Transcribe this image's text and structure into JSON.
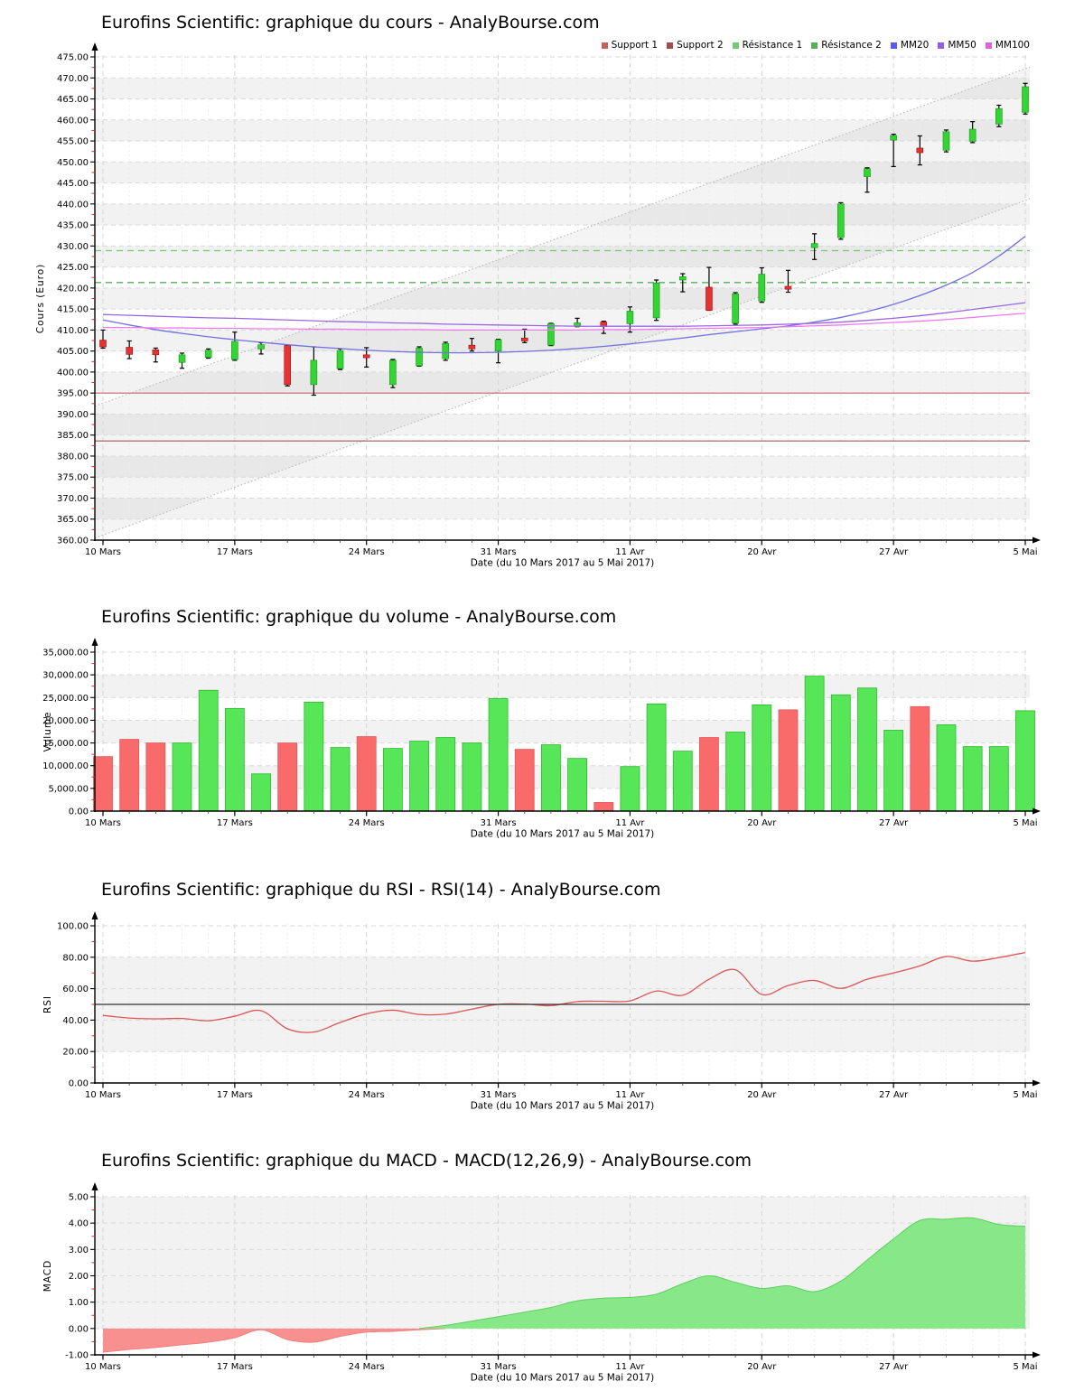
{
  "page_background": "#ffffff",
  "chart_data": [
    {
      "id": "cours",
      "type": "candlestick",
      "title": "Eurofins Scientific: graphique du cours - AnalyBourse.com",
      "ylabel": "Cours (Euro)",
      "xlabel": "Date (du 10 Mars 2017 au 5 Mai 2017)",
      "ylim": [
        360,
        475
      ],
      "ytick_step": 5,
      "ytick_labels": [
        "360.00",
        "365.00",
        "370.00",
        "375.00",
        "380.00",
        "385.00",
        "390.00",
        "395.00",
        "400.00",
        "405.00",
        "410.00",
        "415.00",
        "420.00",
        "425.00",
        "430.00",
        "435.00",
        "440.00",
        "445.00",
        "450.00",
        "455.00",
        "460.00",
        "465.00",
        "470.00",
        "475.00"
      ],
      "xtick_labels": [
        "10 Mars",
        "17 Mars",
        "24 Mars",
        "31 Mars",
        "11 Avr",
        "20 Avr",
        "27 Avr",
        "5 Mai"
      ],
      "xtick_indices": [
        0,
        5,
        10,
        15,
        20,
        25,
        30,
        35
      ],
      "n_points": 36,
      "ohlc": [
        [
          407.6,
          410.0,
          405.7,
          406.0
        ],
        [
          405.9,
          407.4,
          403.2,
          404.2
        ],
        [
          405.3,
          405.7,
          402.4,
          404.1
        ],
        [
          402.3,
          404.5,
          400.9,
          404.1
        ],
        [
          403.5,
          405.5,
          403.3,
          405.2
        ],
        [
          403.0,
          409.5,
          402.8,
          407.3
        ],
        [
          405.5,
          407.0,
          404.3,
          406.5
        ],
        [
          406.3,
          406.4,
          396.7,
          397.0
        ],
        [
          397.0,
          406.0,
          394.5,
          402.8
        ],
        [
          400.8,
          405.5,
          400.6,
          405.1
        ],
        [
          404.1,
          405.8,
          401.2,
          403.4
        ],
        [
          397.0,
          403.0,
          396.3,
          402.8
        ],
        [
          401.5,
          406.0,
          401.4,
          405.7
        ],
        [
          403.2,
          407.1,
          402.8,
          406.8
        ],
        [
          406.4,
          408.0,
          405.0,
          405.5
        ],
        [
          405.0,
          407.8,
          402.2,
          407.7
        ],
        [
          408.1,
          410.2,
          407.0,
          407.4
        ],
        [
          406.4,
          411.6,
          406.3,
          411.5
        ],
        [
          410.9,
          412.8,
          410.8,
          411.7
        ],
        [
          411.9,
          412.1,
          409.2,
          410.8
        ],
        [
          411.5,
          415.5,
          409.5,
          414.5
        ],
        [
          412.9,
          421.9,
          412.3,
          421.2
        ],
        [
          421.9,
          423.4,
          419.1,
          422.7
        ],
        [
          420.2,
          424.9,
          414.7,
          414.7
        ],
        [
          411.6,
          418.9,
          411.4,
          418.6
        ],
        [
          416.9,
          424.8,
          416.6,
          423.3
        ],
        [
          420.4,
          424.2,
          419.0,
          419.8
        ],
        [
          429.6,
          432.9,
          426.8,
          430.6
        ],
        [
          432.0,
          440.3,
          431.6,
          440.0
        ],
        [
          446.5,
          448.6,
          442.8,
          448.4
        ],
        [
          455.2,
          456.6,
          448.9,
          456.3
        ],
        [
          453.3,
          456.2,
          449.3,
          452.2
        ],
        [
          452.8,
          457.6,
          452.4,
          457.2
        ],
        [
          454.9,
          459.6,
          454.6,
          457.8
        ],
        [
          459.0,
          463.5,
          458.4,
          462.7
        ],
        [
          461.8,
          468.7,
          461.4,
          467.9
        ]
      ],
      "up_color": "#33d433",
      "down_color": "#e63232",
      "legend": [
        {
          "label": "Support 1",
          "color": "#c75f5f"
        },
        {
          "label": "Support 2",
          "color": "#9e5050"
        },
        {
          "label": "Résistance 1",
          "color": "#74c974"
        },
        {
          "label": "Résistance 2",
          "color": "#58ad58"
        },
        {
          "label": "MM20",
          "color": "#5c5ce0"
        },
        {
          "label": "MM50",
          "color": "#9060e0"
        },
        {
          "label": "MM100",
          "color": "#e060e0"
        }
      ],
      "support_lines": [
        {
          "name": "Support 1",
          "value": 395.0,
          "color": "#c96a6a"
        },
        {
          "name": "Support 2",
          "value": 383.6,
          "color": "#a15c52"
        }
      ],
      "resistance_lines": [
        {
          "name": "Résistance 1",
          "value": 428.9,
          "color": "#74c974"
        },
        {
          "name": "Résistance 2",
          "value": 421.3,
          "color": "#58ad58"
        }
      ],
      "moving_averages": [
        {
          "name": "MM20",
          "color": "#7070e0",
          "values": [
            412.4,
            411.2,
            410.1,
            409.2,
            408.4,
            407.7,
            407.1,
            406.5,
            406.0,
            405.6,
            405.2,
            404.9,
            404.7,
            404.6,
            404.6,
            404.7,
            404.9,
            405.2,
            405.6,
            406.1,
            406.7,
            407.4,
            408.1,
            408.9,
            409.6,
            410.3,
            411.0,
            411.9,
            413.0,
            414.4,
            416.1,
            418.2,
            420.7,
            423.7,
            427.6,
            432.3
          ]
        },
        {
          "name": "MM50",
          "color": "#9a68e4",
          "values": [
            413.7,
            413.5,
            413.3,
            413.1,
            412.9,
            412.8,
            412.6,
            412.4,
            412.2,
            412.0,
            411.9,
            411.7,
            411.6,
            411.4,
            411.3,
            411.2,
            411.1,
            411.0,
            410.9,
            410.9,
            410.9,
            410.9,
            410.9,
            411.0,
            411.1,
            411.2,
            411.4,
            411.6,
            411.9,
            412.3,
            412.8,
            413.4,
            414.1,
            414.9,
            415.7,
            416.5
          ]
        },
        {
          "name": "MM100",
          "color": "#ee7bee",
          "values": [
            410.6,
            410.6,
            410.5,
            410.5,
            410.4,
            410.4,
            410.3,
            410.3,
            410.2,
            410.2,
            410.1,
            410.1,
            410.1,
            410.0,
            410.0,
            410.0,
            410.0,
            410.0,
            410.0,
            410.1,
            410.1,
            410.2,
            410.3,
            410.4,
            410.5,
            410.6,
            410.8,
            411.0,
            411.2,
            411.5,
            411.8,
            412.1,
            412.5,
            413.0,
            413.5,
            414.0
          ]
        }
      ],
      "trend_channel": {
        "lower": [
          360.5,
          441.2
        ],
        "upper": [
          391.9,
          472.6
        ],
        "line_color": "#bbbbbb",
        "fill_color": "rgba(150,150,150,0.10)"
      }
    },
    {
      "id": "volume",
      "type": "bar",
      "title": "Eurofins Scientific: graphique du volume - AnalyBourse.com",
      "ylabel": "Volume",
      "xlabel": "Date (du 10 Mars 2017 au 5 Mai 2017)",
      "ylim": [
        0,
        35000
      ],
      "ytick_step": 5000,
      "ytick_labels": [
        "0.00",
        "5,000.00",
        "10,000.00",
        "15,000.00",
        "20,000.00",
        "25,000.00",
        "30,000.00",
        "35,000.00"
      ],
      "xtick_labels": [
        "10 Mars",
        "17 Mars",
        "24 Mars",
        "31 Mars",
        "11 Avr",
        "20 Avr",
        "27 Avr",
        "5 Mai"
      ],
      "xtick_indices": [
        0,
        5,
        10,
        15,
        20,
        25,
        30,
        35
      ],
      "values": [
        12000,
        15800,
        15000,
        15000,
        26600,
        22600,
        8200,
        15000,
        24000,
        14000,
        16400,
        13800,
        15400,
        16200,
        15000,
        24800,
        13600,
        14600,
        11600,
        1900,
        9800,
        23600,
        13200,
        16200,
        17400,
        23400,
        22300,
        29700,
        25600,
        27100,
        17800,
        23000,
        19000,
        14200,
        14200,
        22100
      ],
      "bar_direction": [
        "down",
        "down",
        "down",
        "up",
        "up",
        "up",
        "up",
        "down",
        "up",
        "up",
        "down",
        "up",
        "up",
        "up",
        "up",
        "up",
        "down",
        "up",
        "up",
        "down",
        "up",
        "up",
        "up",
        "down",
        "up",
        "up",
        "down",
        "up",
        "up",
        "up",
        "up",
        "down",
        "up",
        "up",
        "up",
        "up"
      ],
      "up_color": "#57e657",
      "down_color": "#f96b6b"
    },
    {
      "id": "rsi",
      "type": "line",
      "title": "Eurofins Scientific: graphique du RSI - RSI(14) - AnalyBourse.com",
      "ylabel": "RSI",
      "xlabel": "Date (du 10 Mars 2017 au 5 Mai 2017)",
      "ylim": [
        0,
        100
      ],
      "ytick_step": 20,
      "ytick_labels": [
        "0.00",
        "20.00",
        "40.00",
        "60.00",
        "80.00",
        "100.00"
      ],
      "xtick_labels": [
        "10 Mars",
        "17 Mars",
        "24 Mars",
        "31 Mars",
        "11 Avr",
        "20 Avr",
        "27 Avr",
        "5 Mai"
      ],
      "xtick_indices": [
        0,
        5,
        10,
        15,
        20,
        25,
        30,
        35
      ],
      "values": [
        43.0,
        41.3,
        40.8,
        41.0,
        39.6,
        42.5,
        46.0,
        34.5,
        32.4,
        38.5,
        44.0,
        46.3,
        43.6,
        43.8,
        47.0,
        50.0,
        50.2,
        49.2,
        51.8,
        52.0,
        52.2,
        58.5,
        55.8,
        66.0,
        72.0,
        56.3,
        62.0,
        65.2,
        60.2,
        66.0,
        70.0,
        74.5,
        80.5,
        77.5,
        79.8,
        83.0
      ],
      "line_color": "#dd5555",
      "midline": {
        "value": 50,
        "color": "#333333"
      },
      "grey_band": [
        20,
        80
      ]
    },
    {
      "id": "macd",
      "type": "area",
      "title": "Eurofins Scientific: graphique du MACD - MACD(12,26,9) - AnalyBourse.com",
      "ylabel": "MACD",
      "xlabel": "Date (du 10 Mars 2017 au 5 Mai 2017)",
      "ylim": [
        -1,
        5
      ],
      "ytick_step": 1,
      "ytick_labels": [
        "-1.00",
        "0.00",
        "1.00",
        "2.00",
        "3.00",
        "4.00",
        "5.00"
      ],
      "xtick_labels": [
        "10 Mars",
        "17 Mars",
        "24 Mars",
        "31 Mars",
        "11 Avr",
        "20 Avr",
        "27 Avr",
        "5 Mai"
      ],
      "xtick_indices": [
        0,
        5,
        10,
        15,
        20,
        25,
        30,
        35
      ],
      "values": [
        -0.9,
        -0.8,
        -0.72,
        -0.62,
        -0.52,
        -0.35,
        -0.05,
        -0.42,
        -0.52,
        -0.3,
        -0.14,
        -0.11,
        -0.05,
        0.12,
        0.28,
        0.45,
        0.62,
        0.8,
        1.05,
        1.15,
        1.18,
        1.3,
        1.7,
        2.0,
        1.75,
        1.52,
        1.62,
        1.4,
        1.8,
        2.6,
        3.4,
        4.1,
        4.15,
        4.2,
        3.95,
        3.88
      ],
      "positive_fill": "#86e886",
      "positive_edge": "#5ecf5e",
      "negative_fill": "#f99090",
      "negative_edge": "#ef8080",
      "grey_band": [
        0,
        5
      ]
    }
  ]
}
